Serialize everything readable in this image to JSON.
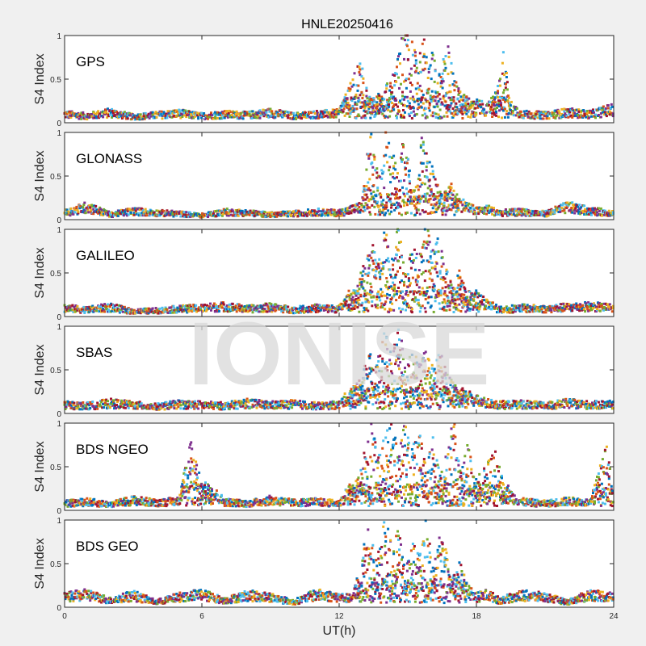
{
  "title": "HNLE20250416",
  "watermark": "IONISE",
  "chart_data": [
    {
      "type": "scatter",
      "label": "GPS",
      "ylabel": "S4 Index",
      "ylim": [
        0,
        1
      ],
      "yticks": [
        "0",
        "0.5",
        "1"
      ],
      "xlim": [
        0,
        24
      ],
      "points": [
        [
          0,
          0.1
        ],
        [
          1,
          0.08
        ],
        [
          2,
          0.12
        ],
        [
          3,
          0.07
        ],
        [
          4,
          0.09
        ],
        [
          5,
          0.11
        ],
        [
          6,
          0.08
        ],
        [
          7,
          0.1
        ],
        [
          8,
          0.09
        ],
        [
          9,
          0.12
        ],
        [
          10,
          0.08
        ],
        [
          11,
          0.1
        ],
        [
          12,
          0.11
        ],
        [
          12.6,
          0.45
        ],
        [
          12.8,
          0.62
        ],
        [
          13.0,
          0.55
        ],
        [
          13.3,
          0.22
        ],
        [
          13.8,
          0.3
        ],
        [
          14.2,
          0.4
        ],
        [
          14.5,
          0.55
        ],
        [
          14.7,
          0.8
        ],
        [
          14.9,
          0.95
        ],
        [
          15.1,
          0.88
        ],
        [
          15.3,
          0.7
        ],
        [
          15.5,
          0.62
        ],
        [
          15.7,
          0.9
        ],
        [
          15.9,
          0.5
        ],
        [
          16.1,
          0.72
        ],
        [
          16.3,
          0.4
        ],
        [
          16.5,
          0.6
        ],
        [
          16.8,
          0.78
        ],
        [
          17.0,
          0.45
        ],
        [
          17.3,
          0.3
        ],
        [
          17.6,
          0.25
        ],
        [
          18.0,
          0.2
        ],
        [
          18.5,
          0.15
        ],
        [
          19.0,
          0.4
        ],
        [
          19.2,
          0.72
        ],
        [
          19.5,
          0.18
        ],
        [
          20,
          0.1
        ],
        [
          21,
          0.09
        ],
        [
          22,
          0.12
        ],
        [
          23,
          0.1
        ],
        [
          23.8,
          0.15
        ]
      ]
    },
    {
      "type": "scatter",
      "label": "GLONASS",
      "ylabel": "S4 Index",
      "ylim": [
        0,
        1
      ],
      "yticks": [
        "0",
        "0.5",
        "1"
      ],
      "xlim": [
        0,
        24
      ],
      "points": [
        [
          0,
          0.08
        ],
        [
          1,
          0.15
        ],
        [
          2,
          0.06
        ],
        [
          3,
          0.1
        ],
        [
          4,
          0.08
        ],
        [
          5,
          0.07
        ],
        [
          6,
          0.05
        ],
        [
          7,
          0.09
        ],
        [
          8,
          0.08
        ],
        [
          9,
          0.06
        ],
        [
          10,
          0.07
        ],
        [
          11,
          0.09
        ],
        [
          12,
          0.08
        ],
        [
          13.0,
          0.15
        ],
        [
          13.2,
          0.6
        ],
        [
          13.4,
          0.85
        ],
        [
          13.6,
          0.55
        ],
        [
          13.8,
          0.4
        ],
        [
          14.0,
          0.9
        ],
        [
          14.3,
          0.7
        ],
        [
          14.6,
          0.45
        ],
        [
          14.8,
          0.8
        ],
        [
          15.0,
          0.65
        ],
        [
          15.2,
          0.5
        ],
        [
          15.4,
          0.3
        ],
        [
          15.6,
          0.85
        ],
        [
          15.9,
          0.6
        ],
        [
          16.2,
          0.45
        ],
        [
          16.5,
          0.25
        ],
        [
          16.9,
          0.35
        ],
        [
          17.2,
          0.2
        ],
        [
          17.6,
          0.15
        ],
        [
          18.0,
          0.1
        ],
        [
          18.5,
          0.12
        ],
        [
          19,
          0.08
        ],
        [
          20,
          0.09
        ],
        [
          21,
          0.07
        ],
        [
          22,
          0.15
        ],
        [
          23,
          0.1
        ],
        [
          24,
          0.08
        ]
      ]
    },
    {
      "type": "scatter",
      "label": "GALILEO",
      "ylabel": "S4 Index",
      "ylim": [
        0,
        1
      ],
      "yticks": [
        "0",
        "0.5",
        "1"
      ],
      "xlim": [
        0,
        24
      ],
      "points": [
        [
          0,
          0.1
        ],
        [
          1,
          0.08
        ],
        [
          2,
          0.11
        ],
        [
          3,
          0.06
        ],
        [
          4,
          0.07
        ],
        [
          5,
          0.09
        ],
        [
          6,
          0.1
        ],
        [
          7,
          0.12
        ],
        [
          8,
          0.09
        ],
        [
          9,
          0.11
        ],
        [
          10,
          0.08
        ],
        [
          11,
          0.1
        ],
        [
          12,
          0.09
        ],
        [
          12.8,
          0.3
        ],
        [
          13.1,
          0.55
        ],
        [
          13.4,
          0.75
        ],
        [
          13.7,
          0.5
        ],
        [
          14.0,
          0.85
        ],
        [
          14.3,
          0.6
        ],
        [
          14.6,
          0.9
        ],
        [
          14.9,
          0.4
        ],
        [
          15.2,
          0.7
        ],
        [
          15.5,
          0.55
        ],
        [
          15.8,
          0.95
        ],
        [
          16.1,
          0.65
        ],
        [
          16.4,
          0.8
        ],
        [
          16.7,
          0.45
        ],
        [
          17.0,
          0.3
        ],
        [
          17.3,
          0.5
        ],
        [
          17.6,
          0.2
        ],
        [
          18.0,
          0.25
        ],
        [
          18.4,
          0.15
        ],
        [
          18.8,
          0.12
        ],
        [
          19,
          0.08
        ],
        [
          20,
          0.1
        ],
        [
          21,
          0.09
        ],
        [
          22,
          0.11
        ],
        [
          23,
          0.12
        ],
        [
          24,
          0.1
        ]
      ]
    },
    {
      "type": "scatter",
      "label": "SBAS",
      "ylabel": "S4 Index",
      "ylim": [
        0,
        1
      ],
      "yticks": [
        "0",
        "0.5",
        "1"
      ],
      "xlim": [
        0,
        24
      ],
      "points": [
        [
          0,
          0.1
        ],
        [
          1,
          0.09
        ],
        [
          2,
          0.12
        ],
        [
          3,
          0.1
        ],
        [
          4,
          0.08
        ],
        [
          5,
          0.11
        ],
        [
          6,
          0.1
        ],
        [
          7,
          0.09
        ],
        [
          8,
          0.12
        ],
        [
          9,
          0.1
        ],
        [
          10,
          0.11
        ],
        [
          11,
          0.09
        ],
        [
          12,
          0.1
        ],
        [
          13.0,
          0.35
        ],
        [
          13.3,
          0.6
        ],
        [
          13.6,
          0.45
        ],
        [
          14.0,
          0.8
        ],
        [
          14.3,
          0.55
        ],
        [
          14.6,
          0.95
        ],
        [
          14.9,
          0.4
        ],
        [
          15.2,
          0.65
        ],
        [
          15.5,
          0.5
        ],
        [
          15.8,
          0.7
        ],
        [
          16.1,
          0.45
        ],
        [
          16.4,
          0.6
        ],
        [
          16.8,
          0.35
        ],
        [
          17.2,
          0.25
        ],
        [
          17.6,
          0.2
        ],
        [
          18.0,
          0.15
        ],
        [
          18.5,
          0.12
        ],
        [
          19,
          0.1
        ],
        [
          20,
          0.11
        ],
        [
          21,
          0.09
        ],
        [
          22,
          0.12
        ],
        [
          23,
          0.1
        ],
        [
          24,
          0.11
        ]
      ]
    },
    {
      "type": "scatter",
      "label": "BDS NGEO",
      "ylabel": "S4 Index",
      "ylim": [
        0,
        1
      ],
      "yticks": [
        "0",
        "0.5",
        "1"
      ],
      "xlim": [
        0,
        24
      ],
      "points": [
        [
          0,
          0.08
        ],
        [
          1,
          0.1
        ],
        [
          2,
          0.07
        ],
        [
          3,
          0.12
        ],
        [
          4,
          0.09
        ],
        [
          5,
          0.11
        ],
        [
          5.5,
          0.68
        ],
        [
          6,
          0.3
        ],
        [
          7,
          0.1
        ],
        [
          8,
          0.08
        ],
        [
          9,
          0.12
        ],
        [
          10,
          0.09
        ],
        [
          11,
          0.1
        ],
        [
          12,
          0.08
        ],
        [
          12.8,
          0.35
        ],
        [
          13.1,
          0.6
        ],
        [
          13.4,
          0.85
        ],
        [
          13.7,
          0.55
        ],
        [
          14.0,
          0.7
        ],
        [
          14.3,
          0.9
        ],
        [
          14.6,
          0.5
        ],
        [
          14.9,
          0.95
        ],
        [
          15.2,
          0.6
        ],
        [
          15.5,
          0.8
        ],
        [
          15.8,
          0.45
        ],
        [
          16.1,
          0.7
        ],
        [
          16.4,
          0.35
        ],
        [
          16.7,
          0.55
        ],
        [
          17.0,
          0.9
        ],
        [
          17.3,
          0.4
        ],
        [
          17.6,
          0.65
        ],
        [
          18.0,
          0.3
        ],
        [
          18.4,
          0.45
        ],
        [
          18.8,
          0.6
        ],
        [
          19.2,
          0.25
        ],
        [
          19.6,
          0.15
        ],
        [
          20,
          0.1
        ],
        [
          21,
          0.08
        ],
        [
          22,
          0.11
        ],
        [
          23,
          0.09
        ],
        [
          23.7,
          0.68
        ],
        [
          24,
          0.1
        ]
      ]
    },
    {
      "type": "scatter",
      "label": "BDS GEO",
      "ylabel": "S4 Index",
      "ylim": [
        0,
        1
      ],
      "yticks": [
        "0",
        "0.5",
        "1"
      ],
      "xlim": [
        0,
        24
      ],
      "xticks": [
        "0",
        "6",
        "12",
        "18",
        "24"
      ],
      "xlabel": "UT(h)",
      "points": [
        [
          0,
          0.12
        ],
        [
          1,
          0.15
        ],
        [
          2,
          0.08
        ],
        [
          3,
          0.14
        ],
        [
          4,
          0.06
        ],
        [
          5,
          0.12
        ],
        [
          6,
          0.15
        ],
        [
          7,
          0.08
        ],
        [
          8,
          0.14
        ],
        [
          9,
          0.12
        ],
        [
          10,
          0.06
        ],
        [
          11,
          0.15
        ],
        [
          12,
          0.12
        ],
        [
          12.6,
          0.1
        ],
        [
          13.0,
          0.55
        ],
        [
          13.3,
          0.8
        ],
        [
          13.6,
          0.45
        ],
        [
          14.0,
          0.9
        ],
        [
          14.3,
          0.6
        ],
        [
          14.6,
          0.75
        ],
        [
          14.9,
          0.35
        ],
        [
          15.2,
          0.65
        ],
        [
          15.5,
          0.5
        ],
        [
          15.8,
          0.85
        ],
        [
          16.1,
          0.4
        ],
        [
          16.4,
          0.7
        ],
        [
          16.7,
          0.55
        ],
        [
          17.0,
          0.3
        ],
        [
          17.3,
          0.45
        ],
        [
          17.6,
          0.2
        ],
        [
          18.0,
          0.12
        ],
        [
          18.5,
          0.15
        ],
        [
          19,
          0.08
        ],
        [
          20,
          0.14
        ],
        [
          21,
          0.12
        ],
        [
          22,
          0.06
        ],
        [
          23,
          0.15
        ],
        [
          24,
          0.12
        ]
      ]
    }
  ],
  "series_colors": [
    "#0072bd",
    "#d95319",
    "#edb120",
    "#7e2f8e",
    "#77ac30",
    "#4dbeee",
    "#a2142f"
  ]
}
